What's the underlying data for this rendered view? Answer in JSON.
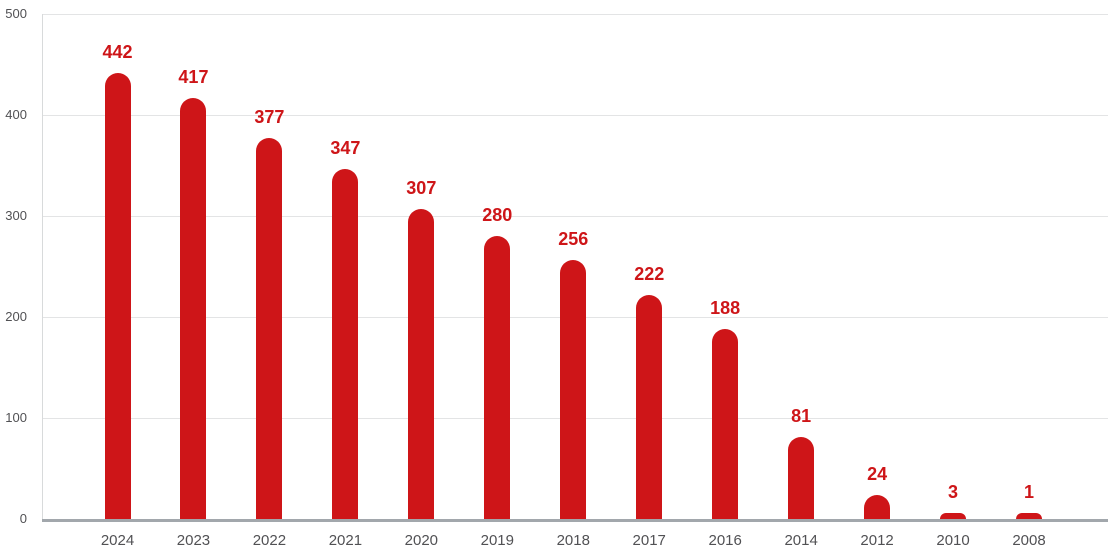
{
  "chart_data": {
    "type": "bar",
    "title": "",
    "xlabel": "",
    "ylabel": "",
    "categories": [
      "2024",
      "2023",
      "2022",
      "2021",
      "2020",
      "2019",
      "2018",
      "2017",
      "2016",
      "2014",
      "2012",
      "2010",
      "2008"
    ],
    "values": [
      442,
      417,
      377,
      347,
      307,
      280,
      256,
      222,
      188,
      81,
      24,
      3,
      1
    ],
    "ylim": [
      0,
      500
    ],
    "yticks": [
      500,
      400,
      300,
      200,
      100,
      0
    ],
    "grid": "horizontal",
    "legend": false,
    "colors": {
      "bar": "#ce1518",
      "value_label": "#ce1518",
      "tick_label": "#515154",
      "gridline": "#e3e4e5",
      "baseline": "#a2a7ac",
      "axis_line": "#d8dadb"
    }
  }
}
